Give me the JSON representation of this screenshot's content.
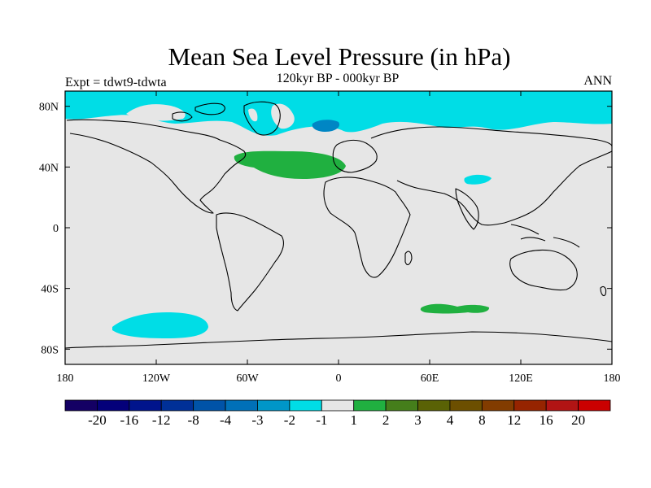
{
  "title": "Mean Sea Level Pressure (in hPa)",
  "subtitle": "120kyr BP - 000kyr BP",
  "experiment": "Expt = tdwt9-tdwta",
  "season": "ANN",
  "map": {
    "background_color": "#e6e6e6",
    "lat_ticks": [
      "80N",
      "40N",
      "0",
      "40S",
      "80S"
    ],
    "lon_ticks": [
      "180",
      "120W",
      "60W",
      "0",
      "60E",
      "120E",
      "180"
    ],
    "anomalies": [
      {
        "region": "Arctic Ocean",
        "level": "-2 to -1",
        "color": "#00dde6"
      },
      {
        "region": "Greenland",
        "level": "-4 to -3",
        "color": "#0086c4"
      },
      {
        "region": "North Atlantic",
        "level": "1 to 2",
        "color": "#20b040"
      },
      {
        "region": "Central Asia",
        "level": "-2 to -1",
        "color": "#00dde6"
      },
      {
        "region": "South Pacific",
        "level": "-2 to -1",
        "color": "#00dde6"
      },
      {
        "region": "Southern Indian Ocean",
        "level": "1 to 2",
        "color": "#20b040"
      }
    ]
  },
  "colorbar": {
    "colors": [
      "#140064",
      "#04007a",
      "#00148c",
      "#003097",
      "#0053a8",
      "#0070b8",
      "#0096c8",
      "#00dde6",
      "#e6e6e6",
      "#20b040",
      "#457e1b",
      "#5a6205",
      "#6c4f00",
      "#823c00",
      "#962400",
      "#b11414",
      "#cb0000"
    ],
    "labels": [
      "-20",
      "-16",
      "-12",
      "-8",
      "-4",
      "-3",
      "-2",
      "-1",
      "1",
      "2",
      "3",
      "4",
      "8",
      "12",
      "16",
      "20"
    ]
  }
}
